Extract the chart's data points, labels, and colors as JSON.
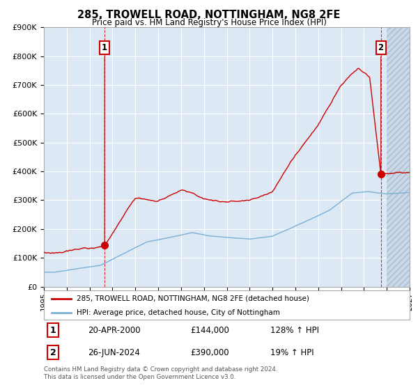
{
  "title": "285, TROWELL ROAD, NOTTINGHAM, NG8 2FE",
  "subtitle": "Price paid vs. HM Land Registry's House Price Index (HPI)",
  "ylim": [
    0,
    900000
  ],
  "yticks": [
    0,
    100000,
    200000,
    300000,
    400000,
    500000,
    600000,
    700000,
    800000,
    900000
  ],
  "ytick_labels": [
    "£0",
    "£100K",
    "£200K",
    "£300K",
    "£400K",
    "£500K",
    "£600K",
    "£700K",
    "£800K",
    "£900K"
  ],
  "background_color": "#ffffff",
  "plot_bg_color": "#dce9f5",
  "grid_color": "#ffffff",
  "xlim_left": 1995,
  "xlim_right": 2027,
  "sale1_date_num": 2000.31,
  "sale1_price": 144000,
  "sale2_date_num": 2024.48,
  "sale2_price": 390000,
  "legend1": "285, TROWELL ROAD, NOTTINGHAM, NG8 2FE (detached house)",
  "legend2": "HPI: Average price, detached house, City of Nottingham",
  "annotation1_date": "20-APR-2000",
  "annotation1_price": "£144,000",
  "annotation1_hpi": "128% ↑ HPI",
  "annotation2_date": "26-JUN-2024",
  "annotation2_price": "£390,000",
  "annotation2_hpi": "19% ↑ HPI",
  "footer": "Contains HM Land Registry data © Crown copyright and database right 2024.\nThis data is licensed under the Open Government Licence v3.0.",
  "hpi_color": "#7bafd4",
  "price_color": "#cc0000",
  "hatch_start": 2025.0
}
